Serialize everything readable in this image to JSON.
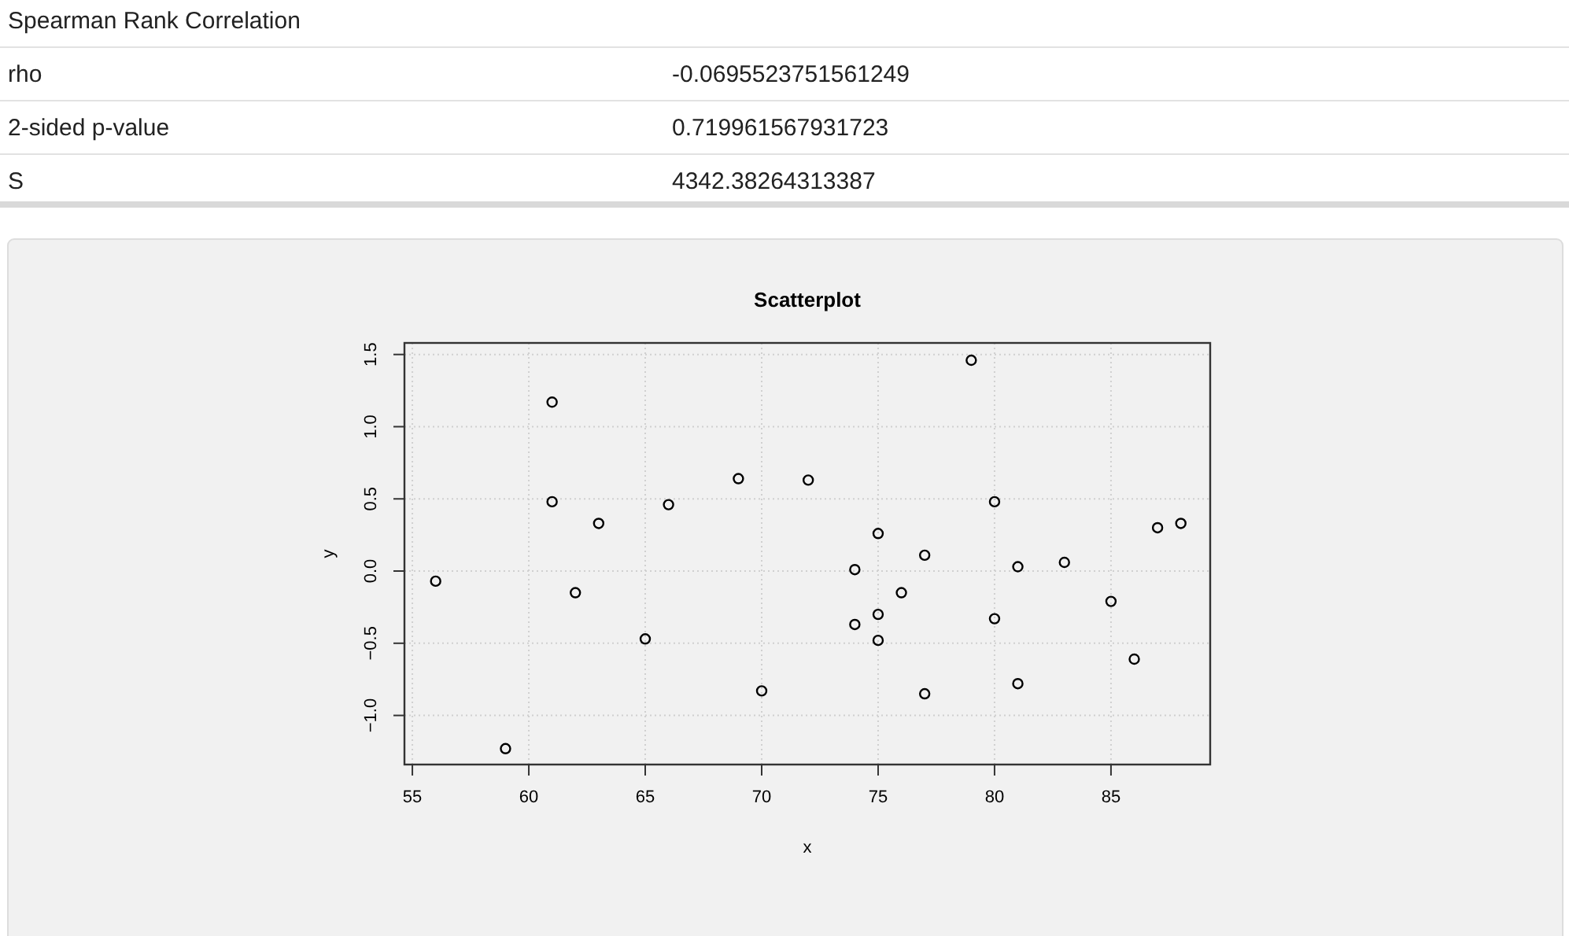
{
  "chart_data": {
    "type": "scatter",
    "title": "Scatterplot",
    "xlabel": "x",
    "ylabel": "y",
    "annotations": [
      "Spearman Rank Correlation",
      "rho",
      "-0.0695523751561249",
      "2-sided p-value",
      "0.719961567931723",
      "S",
      "4342.38264313387"
    ],
    "x": [
      56,
      59,
      61,
      61,
      62,
      63,
      65,
      66,
      69,
      70,
      72,
      74,
      74,
      75,
      75,
      75,
      76,
      77,
      77,
      79,
      80,
      80,
      81,
      81,
      83,
      85,
      86,
      87,
      88
    ],
    "values": [
      -0.07,
      -1.23,
      1.17,
      0.48,
      -0.15,
      0.33,
      -0.47,
      0.46,
      0.64,
      -0.83,
      0.63,
      0.01,
      -0.37,
      0.26,
      -0.3,
      -0.48,
      -0.15,
      0.11,
      -0.85,
      1.46,
      0.48,
      -0.33,
      0.03,
      -0.78,
      0.06,
      -0.21,
      -0.61,
      0.3,
      0.33
    ],
    "color": "#000000",
    "marker": "circle",
    "grid": true,
    "xlim": [
      54.66,
      89.26
    ],
    "xticks": [
      55,
      60,
      65,
      70,
      75,
      80,
      85
    ],
    "ylim": [
      -1.34,
      1.58
    ],
    "yticks": [
      {
        "value": -1,
        "label": "−1.0"
      },
      {
        "value": -0.5,
        "label": "−0.5"
      },
      {
        "value": 0,
        "label": "0.0"
      },
      {
        "value": 0.5,
        "label": "0.5"
      },
      {
        "value": 1,
        "label": "1.0"
      },
      {
        "value": 1.5,
        "label": "1.5"
      }
    ]
  }
}
